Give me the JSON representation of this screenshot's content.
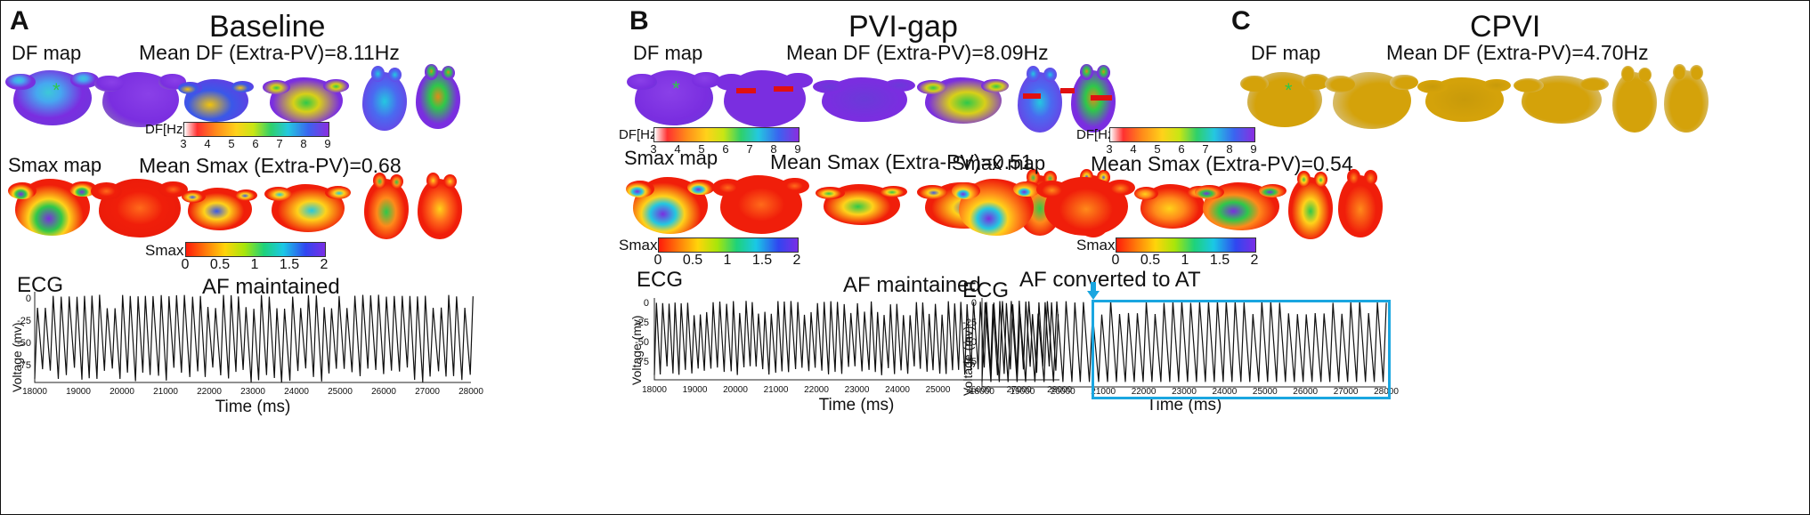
{
  "panels": {
    "a": {
      "letter": "A",
      "title": "Baseline",
      "df_label": "DF map",
      "df_mean": "Mean DF (Extra-PV)=8.11Hz",
      "smax_label": "Smax map",
      "smax_mean": "Mean Smax (Extra-PV)=0.68",
      "ecg_label": "ECG",
      "ecg_status": "AF maintained"
    },
    "b": {
      "letter": "B",
      "title": "PVI-gap",
      "df_label": "DF map",
      "df_mean": "Mean DF (Extra-PV)=8.09Hz",
      "smax_label": "Smax map",
      "smax_mean": "Mean Smax (Extra-PV)=0.51",
      "ecg_label": "ECG",
      "ecg_status": "AF maintained"
    },
    "c": {
      "letter": "C",
      "title": "CPVI",
      "df_label": "DF map",
      "df_mean": "Mean DF (Extra-PV)=4.70Hz",
      "smax_label": "Smax map",
      "smax_mean": "Mean Smax (Extra-PV)=0.54",
      "ecg_label": "ECG",
      "ecg_status": "AF converted to AT"
    }
  },
  "df_colorbar": {
    "title": "DF[Hz]",
    "ticks": [
      "3",
      "4",
      "5",
      "6",
      "7",
      "8",
      "9"
    ]
  },
  "smax_colorbar": {
    "title": "Smax",
    "ticks": [
      "0",
      "0.5",
      "1",
      "1.5",
      "2"
    ]
  },
  "ecg_axes": {
    "ylabel": "Voltage (mv)",
    "xlabel": "Time (ms)",
    "yticks": [
      "0",
      "-25",
      "-50",
      "-75"
    ],
    "xticks": [
      "18000",
      "19000",
      "20000",
      "21000",
      "22000",
      "23000",
      "24000",
      "25000",
      "26000",
      "27000",
      "28000"
    ]
  },
  "colors": {
    "df_purple": "#7a2ee0",
    "df_gold": "#d4a20a",
    "smax_red": "#f01e0a",
    "ecg_line": "#111111",
    "highlight_box": "#1aa6e0",
    "pv_marker": "#e01010",
    "star": "#2ec84a"
  },
  "chart_data": [
    {
      "type": "line",
      "title": "AF maintained",
      "panel": "A",
      "xlabel": "Time (ms)",
      "ylabel": "Voltage (mv)",
      "xlim": [
        18000,
        28000
      ],
      "ylim": [
        -85,
        5
      ],
      "x": [
        18000,
        28000
      ],
      "cycle_length_ms": 180,
      "peak_mv": [
        0,
        2
      ],
      "trough_mv": [
        -85,
        -70
      ]
    },
    {
      "type": "line",
      "title": "AF maintained",
      "panel": "B",
      "xlabel": "Time (ms)",
      "ylabel": "Voltage (mv)",
      "xlim": [
        18000,
        28000
      ],
      "ylim": [
        -85,
        5
      ],
      "x": [
        18000,
        28000
      ],
      "cycle_length_ms": 160,
      "peak_mv": [
        -2,
        2
      ],
      "trough_mv": [
        -80,
        -70
      ]
    },
    {
      "type": "line",
      "title": "AF converted to AT",
      "panel": "C",
      "xlabel": "Time (ms)",
      "ylabel": "Voltage (mv)",
      "xlim": [
        18000,
        28000
      ],
      "ylim": [
        -85,
        5
      ],
      "x": [
        18000,
        28000
      ],
      "cycle_length_ms": 220,
      "peak_mv": [
        0,
        2
      ],
      "trough_mv": [
        -80,
        -80
      ],
      "conversion_time_ms": 20700
    }
  ]
}
